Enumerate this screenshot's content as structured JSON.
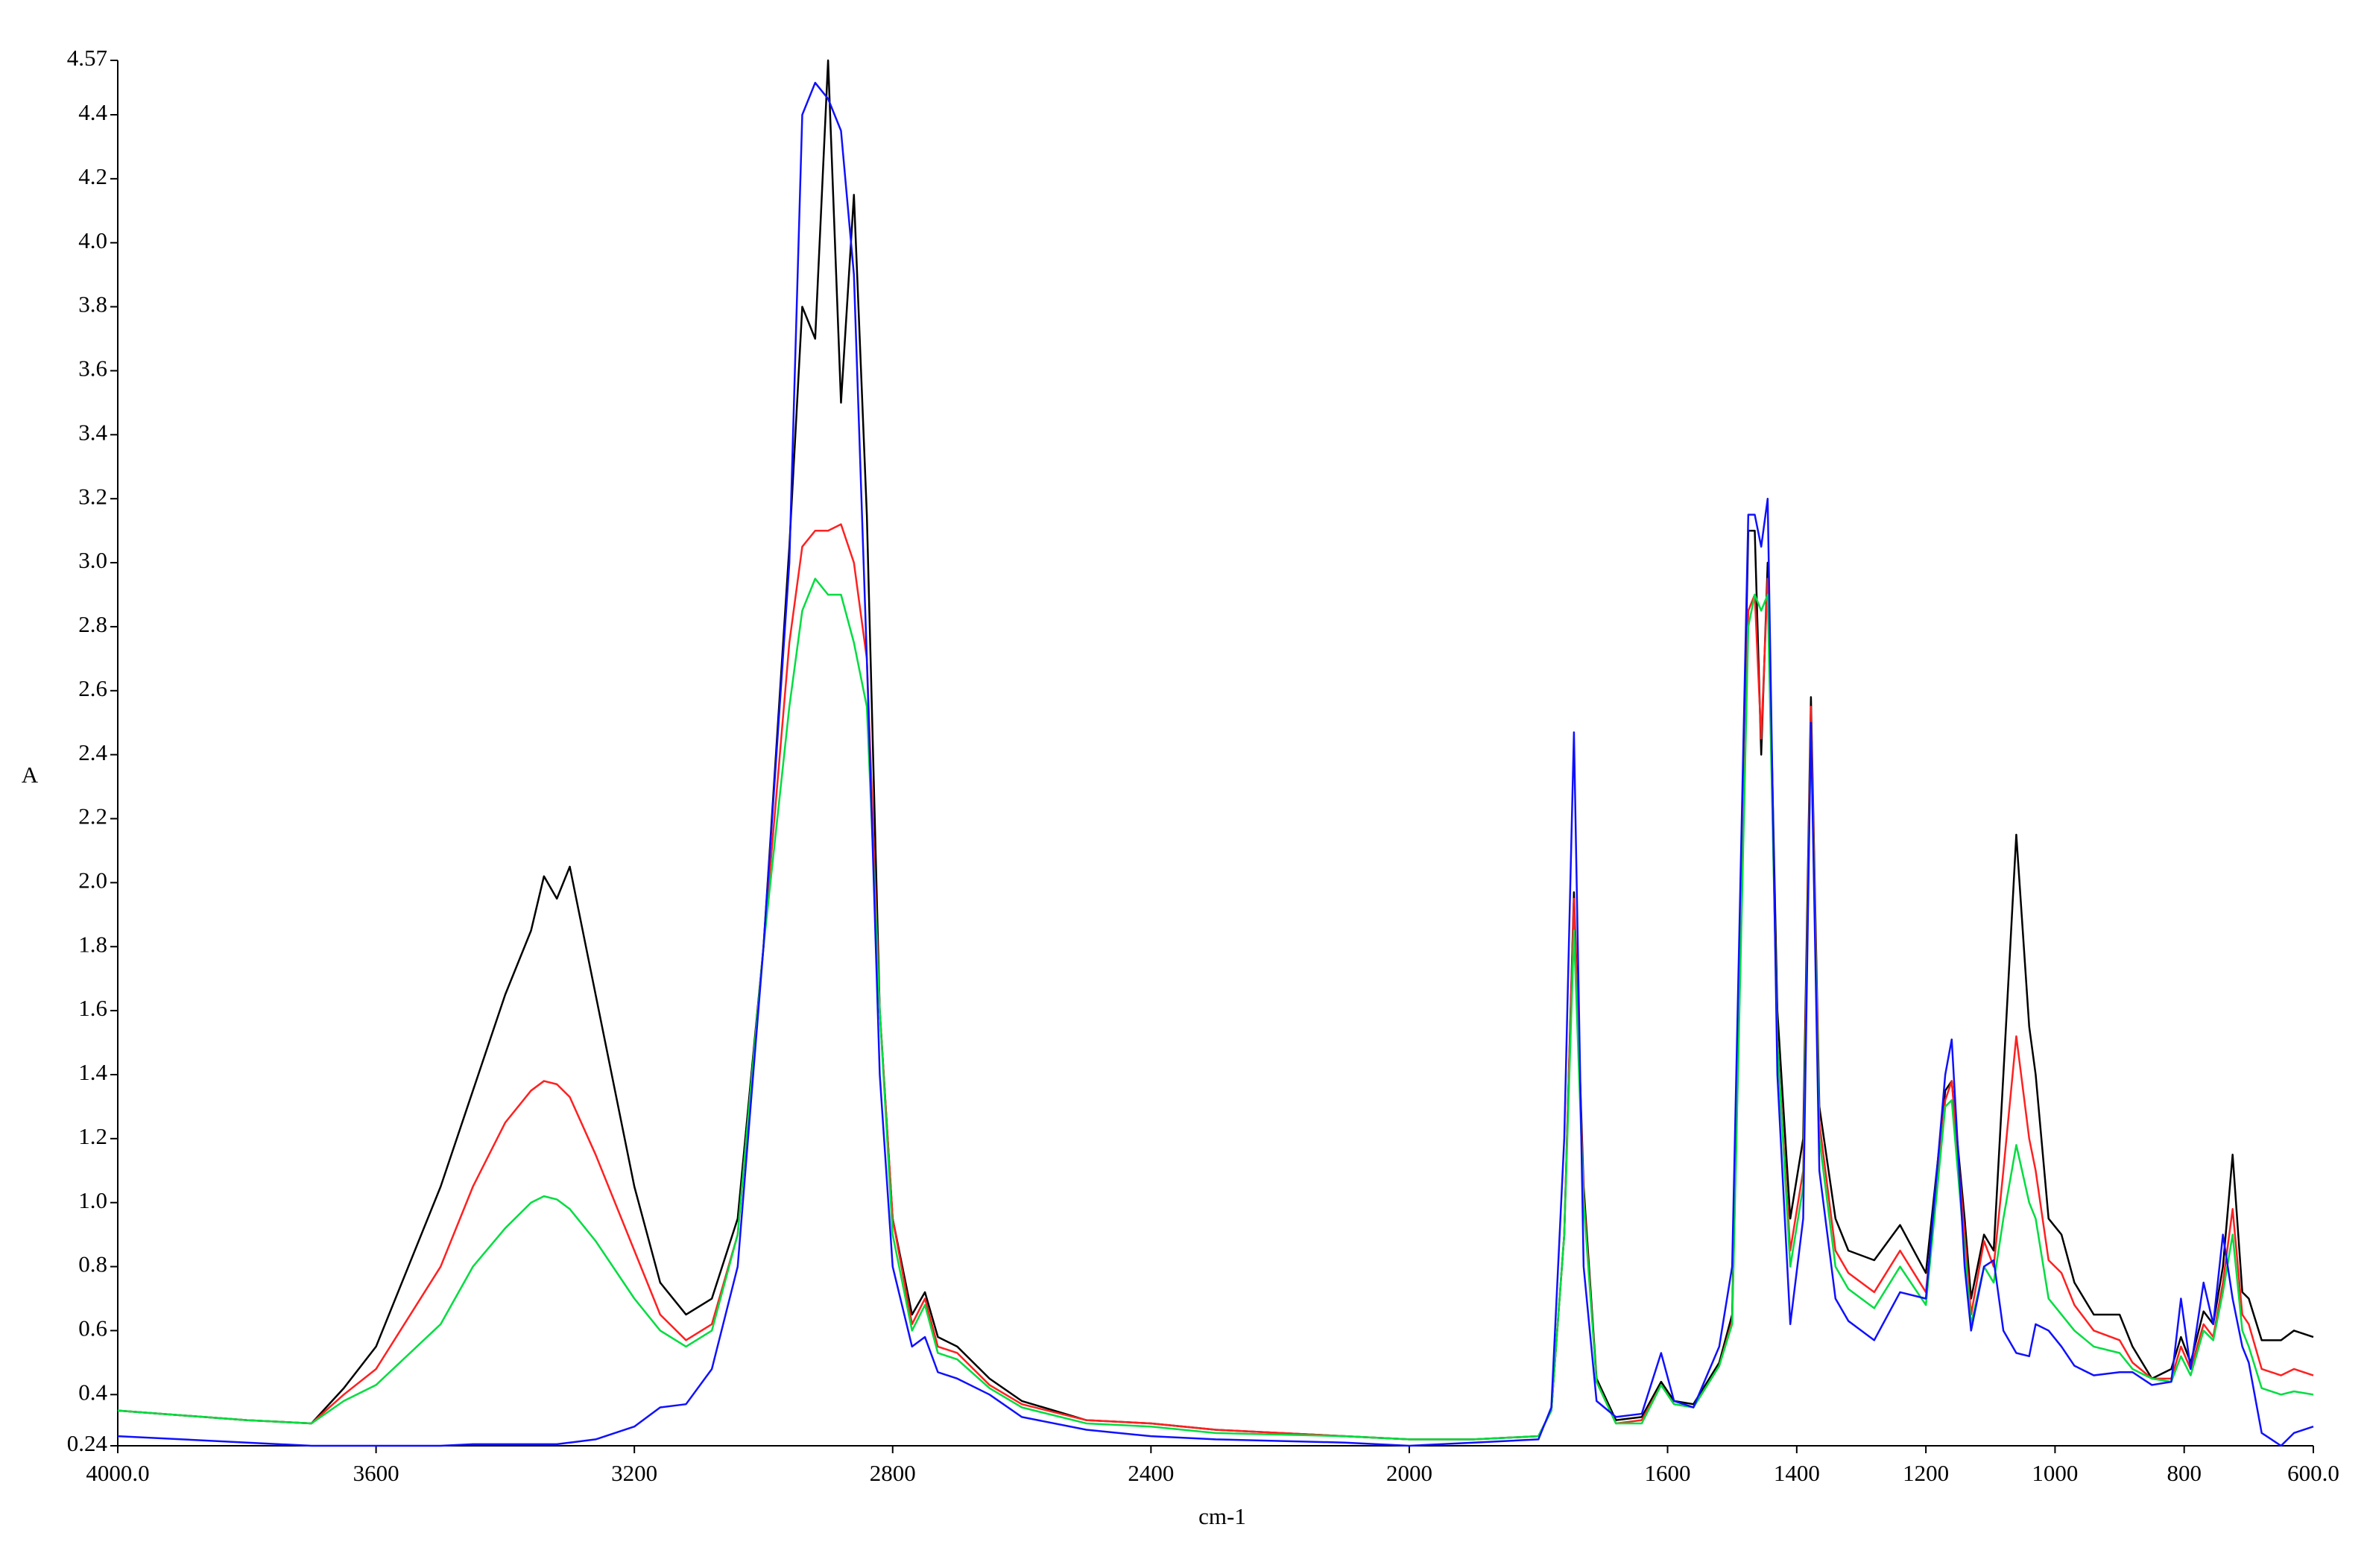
{
  "chart_data": {
    "type": "line",
    "xlabel": "cm-1",
    "ylabel": "A",
    "xlim": [
      4000,
      600
    ],
    "ylim": [
      0.24,
      4.57
    ],
    "xticks": [
      {
        "value": 4000,
        "label": "4000.0"
      },
      3600,
      3200,
      2800,
      2400,
      2000,
      1600,
      1400,
      1200,
      1000,
      800,
      {
        "value": 600,
        "label": "600.0"
      }
    ],
    "yticks": [
      0.24,
      0.4,
      0.6,
      0.8,
      {
        "value": 1,
        "label": "1.0"
      },
      1.2,
      1.4,
      1.6,
      1.8,
      {
        "value": 2,
        "label": "2.0"
      },
      2.2,
      2.4,
      2.6,
      2.8,
      {
        "value": 3,
        "label": "3.0"
      },
      3.2,
      3.4,
      3.6,
      3.8,
      {
        "value": 4,
        "label": "4.0"
      },
      4.2,
      4.4,
      4.57
    ],
    "x": [
      4000,
      3800,
      3700,
      3650,
      3600,
      3500,
      3450,
      3400,
      3360,
      3340,
      3320,
      3300,
      3260,
      3200,
      3160,
      3120,
      3080,
      3040,
      3000,
      2960,
      2940,
      2920,
      2900,
      2880,
      2860,
      2840,
      2820,
      2800,
      2770,
      2750,
      2730,
      2700,
      2650,
      2600,
      2500,
      2400,
      2300,
      2100,
      2000,
      1900,
      1800,
      1780,
      1760,
      1745,
      1730,
      1710,
      1680,
      1640,
      1610,
      1590,
      1560,
      1520,
      1500,
      1475,
      1465,
      1455,
      1445,
      1430,
      1410,
      1390,
      1378,
      1365,
      1340,
      1320,
      1280,
      1240,
      1200,
      1170,
      1160,
      1140,
      1130,
      1110,
      1095,
      1080,
      1060,
      1040,
      1030,
      1010,
      990,
      970,
      940,
      900,
      880,
      850,
      820,
      805,
      790,
      770,
      755,
      740,
      725,
      710,
      700,
      680,
      650,
      630,
      600
    ],
    "series": [
      {
        "color": "#000000",
        "values": [
          0.35,
          0.32,
          0.31,
          0.42,
          0.55,
          1.05,
          1.35,
          1.65,
          1.85,
          2.02,
          1.95,
          2.05,
          1.65,
          1.05,
          0.75,
          0.65,
          0.7,
          0.95,
          1.8,
          3.05,
          3.8,
          3.7,
          4.57,
          3.5,
          4.15,
          3.15,
          1.6,
          0.95,
          0.65,
          0.72,
          0.58,
          0.55,
          0.45,
          0.38,
          0.32,
          0.31,
          0.29,
          0.27,
          0.26,
          0.26,
          0.27,
          0.35,
          0.9,
          1.97,
          1.05,
          0.45,
          0.32,
          0.33,
          0.44,
          0.38,
          0.37,
          0.5,
          0.65,
          3.1,
          3.1,
          2.4,
          3.0,
          1.6,
          0.95,
          1.2,
          2.58,
          1.3,
          0.95,
          0.85,
          0.82,
          0.93,
          0.78,
          1.35,
          1.38,
          0.95,
          0.7,
          0.9,
          0.85,
          1.4,
          2.15,
          1.55,
          1.4,
          0.95,
          0.9,
          0.75,
          0.65,
          0.65,
          0.55,
          0.45,
          0.48,
          0.58,
          0.5,
          0.66,
          0.62,
          0.8,
          1.15,
          0.72,
          0.7,
          0.57,
          0.57,
          0.6,
          0.58
        ]
      },
      {
        "color": "#ff2020",
        "values": [
          0.35,
          0.32,
          0.31,
          0.4,
          0.48,
          0.8,
          1.05,
          1.25,
          1.35,
          1.38,
          1.37,
          1.33,
          1.15,
          0.85,
          0.65,
          0.57,
          0.62,
          0.9,
          1.8,
          2.75,
          3.05,
          3.1,
          3.1,
          3.12,
          3.0,
          2.7,
          1.6,
          0.95,
          0.62,
          0.7,
          0.55,
          0.53,
          0.43,
          0.37,
          0.32,
          0.31,
          0.29,
          0.27,
          0.26,
          0.26,
          0.27,
          0.35,
          0.9,
          1.95,
          1.02,
          0.44,
          0.31,
          0.32,
          0.43,
          0.37,
          0.36,
          0.49,
          0.63,
          2.85,
          2.9,
          2.45,
          2.95,
          1.5,
          0.85,
          1.1,
          2.55,
          1.25,
          0.85,
          0.78,
          0.72,
          0.85,
          0.72,
          1.32,
          1.38,
          0.9,
          0.65,
          0.88,
          0.8,
          1.1,
          1.52,
          1.2,
          1.1,
          0.82,
          0.78,
          0.68,
          0.6,
          0.57,
          0.5,
          0.45,
          0.45,
          0.55,
          0.48,
          0.62,
          0.58,
          0.75,
          0.98,
          0.65,
          0.62,
          0.48,
          0.46,
          0.48,
          0.46
        ]
      },
      {
        "color": "#00dd40",
        "values": [
          0.35,
          0.32,
          0.31,
          0.38,
          0.43,
          0.62,
          0.8,
          0.92,
          1.0,
          1.02,
          1.01,
          0.98,
          0.88,
          0.7,
          0.6,
          0.55,
          0.6,
          0.9,
          1.8,
          2.55,
          2.85,
          2.95,
          2.9,
          2.9,
          2.75,
          2.55,
          1.6,
          0.9,
          0.6,
          0.68,
          0.53,
          0.51,
          0.42,
          0.36,
          0.31,
          0.3,
          0.28,
          0.27,
          0.26,
          0.26,
          0.27,
          0.35,
          0.9,
          1.85,
          1.0,
          0.44,
          0.31,
          0.31,
          0.43,
          0.37,
          0.36,
          0.49,
          0.62,
          2.8,
          2.9,
          2.85,
          2.9,
          1.5,
          0.8,
          1.05,
          2.5,
          1.2,
          0.8,
          0.73,
          0.67,
          0.8,
          0.68,
          1.3,
          1.32,
          0.85,
          0.62,
          0.8,
          0.75,
          0.95,
          1.18,
          1.0,
          0.95,
          0.7,
          0.65,
          0.6,
          0.55,
          0.53,
          0.48,
          0.45,
          0.44,
          0.52,
          0.46,
          0.6,
          0.57,
          0.72,
          0.9,
          0.6,
          0.55,
          0.42,
          0.4,
          0.41,
          0.4
        ]
      },
      {
        "color": "#1010ff",
        "values": [
          0.27,
          0.25,
          0.24,
          0.24,
          0.24,
          0.24,
          0.245,
          0.245,
          0.245,
          0.245,
          0.245,
          0.25,
          0.26,
          0.3,
          0.36,
          0.37,
          0.48,
          0.8,
          1.8,
          3.0,
          4.4,
          4.5,
          4.45,
          4.35,
          3.9,
          2.7,
          1.4,
          0.8,
          0.55,
          0.58,
          0.47,
          0.45,
          0.4,
          0.33,
          0.29,
          0.27,
          0.26,
          0.25,
          0.24,
          0.25,
          0.26,
          0.36,
          1.2,
          2.47,
          0.8,
          0.38,
          0.33,
          0.34,
          0.53,
          0.38,
          0.36,
          0.55,
          0.8,
          3.15,
          3.15,
          3.05,
          3.2,
          1.4,
          0.62,
          0.95,
          2.5,
          1.1,
          0.7,
          0.63,
          0.57,
          0.72,
          0.7,
          1.4,
          1.51,
          0.8,
          0.6,
          0.8,
          0.82,
          0.6,
          0.53,
          0.52,
          0.62,
          0.6,
          0.55,
          0.49,
          0.46,
          0.47,
          0.47,
          0.43,
          0.44,
          0.7,
          0.48,
          0.75,
          0.62,
          0.9,
          0.7,
          0.55,
          0.5,
          0.28,
          0.24,
          0.28,
          0.3
        ]
      }
    ]
  }
}
